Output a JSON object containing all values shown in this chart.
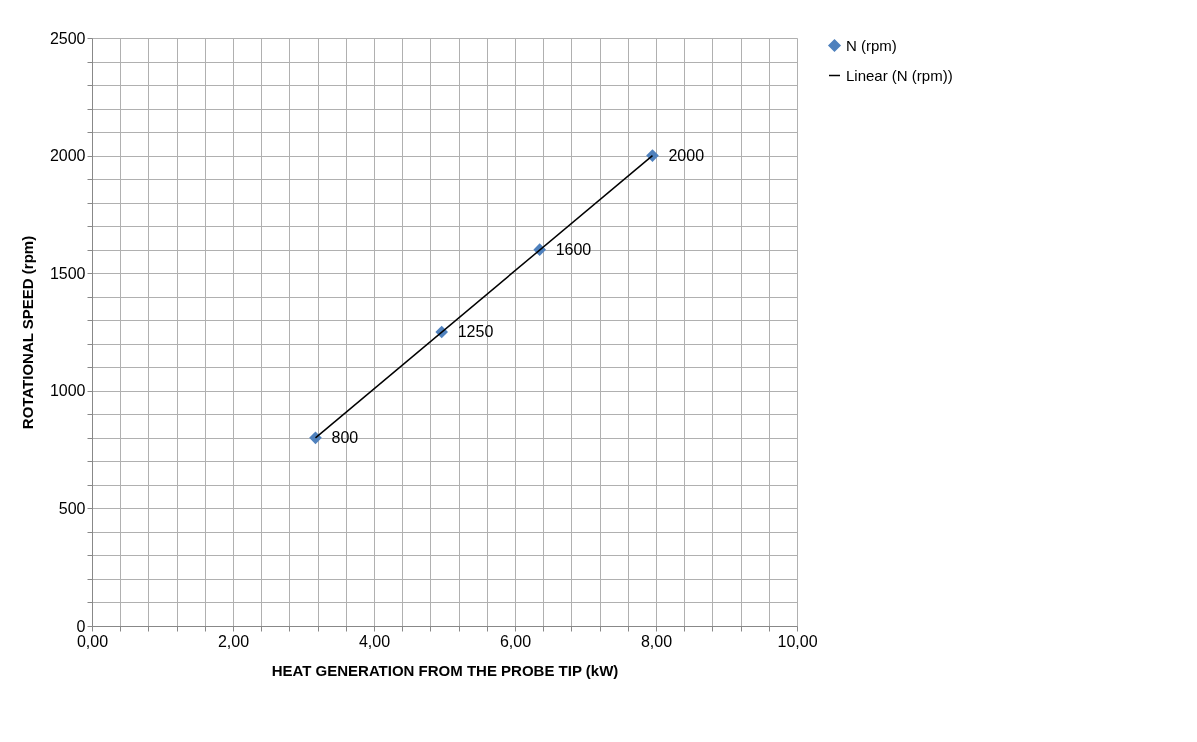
{
  "chart_data": {
    "type": "scatter",
    "xlabel": "HEAT GENERATION FROM THE PROBE TIP (kW)",
    "ylabel": "ROTATIONAL SPEED (rpm)",
    "x": [
      3.17,
      4.96,
      6.35,
      7.95
    ],
    "series": [
      {
        "name": "N (rpm)",
        "color": "#4f81bd",
        "marker": "diamond",
        "values": [
          800,
          1250,
          1600,
          2000
        ],
        "value_labels": [
          "800",
          "1250",
          "1600",
          "2000"
        ]
      },
      {
        "name": "Linear (N (rpm))",
        "type": "line",
        "color": "#000000",
        "x": [
          3.17,
          7.95
        ],
        "values": [
          800,
          2000
        ]
      }
    ],
    "xlim": [
      0,
      10
    ],
    "ylim": [
      0,
      2500
    ],
    "xticks": [
      {
        "value": 0,
        "label": "0,00"
      },
      {
        "value": 0.4,
        "label": null
      },
      {
        "value": 0.8,
        "label": null
      },
      {
        "value": 1.2,
        "label": null
      },
      {
        "value": 1.6,
        "label": null
      },
      {
        "value": 2,
        "label": "2,00"
      },
      {
        "value": 2.4,
        "label": null
      },
      {
        "value": 2.8,
        "label": null
      },
      {
        "value": 3.2,
        "label": null
      },
      {
        "value": 3.6,
        "label": null
      },
      {
        "value": 4,
        "label": "4,00"
      },
      {
        "value": 4.4,
        "label": null
      },
      {
        "value": 4.8,
        "label": null
      },
      {
        "value": 5.2,
        "label": null
      },
      {
        "value": 5.6,
        "label": null
      },
      {
        "value": 6,
        "label": "6,00"
      },
      {
        "value": 6.4,
        "label": null
      },
      {
        "value": 6.8,
        "label": null
      },
      {
        "value": 7.2,
        "label": null
      },
      {
        "value": 7.6,
        "label": null
      },
      {
        "value": 8,
        "label": "8,00"
      },
      {
        "value": 8.4,
        "label": null
      },
      {
        "value": 8.8,
        "label": null
      },
      {
        "value": 9.2,
        "label": null
      },
      {
        "value": 9.6,
        "label": null
      },
      {
        "value": 10,
        "label": "10,00"
      }
    ],
    "yticks": [
      0,
      {
        "value": 100,
        "label": null
      },
      {
        "value": 200,
        "label": null
      },
      {
        "value": 300,
        "label": null
      },
      {
        "value": 400,
        "label": null
      },
      500,
      {
        "value": 600,
        "label": null
      },
      {
        "value": 700,
        "label": null
      },
      {
        "value": 800,
        "label": null
      },
      {
        "value": 900,
        "label": null
      },
      1000,
      {
        "value": 1100,
        "label": null
      },
      {
        "value": 1200,
        "label": null
      },
      {
        "value": 1300,
        "label": null
      },
      {
        "value": 1400,
        "label": null
      },
      1500,
      {
        "value": 1600,
        "label": null
      },
      {
        "value": 1700,
        "label": null
      },
      {
        "value": 1800,
        "label": null
      },
      {
        "value": 1900,
        "label": null
      },
      2000,
      {
        "value": 2100,
        "label": null
      },
      {
        "value": 2200,
        "label": null
      },
      {
        "value": 2300,
        "label": null
      },
      {
        "value": 2400,
        "label": null
      },
      2500
    ],
    "grid": true,
    "legend": "right"
  }
}
